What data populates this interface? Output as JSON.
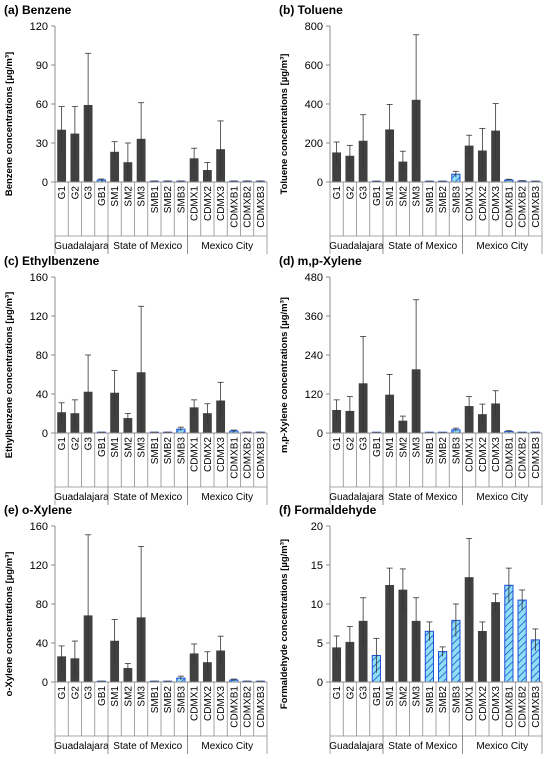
{
  "chart_data": [
    {
      "type": "bar",
      "title": "(a) Benzene",
      "ylabel": "Benzene concentrations [µg/m³]",
      "ylim": [
        0,
        120
      ],
      "yticks": [
        "0",
        "30",
        "60",
        "90",
        "120"
      ],
      "categories": [
        "G1",
        "G2",
        "G3",
        "GB1",
        "SM1",
        "SM2",
        "SM3",
        "SMB1",
        "SMB2",
        "SMB3",
        "CDMX1",
        "CDMX2",
        "CDMX3",
        "CDMXB1",
        "CDMXB2",
        "CDMXB3"
      ],
      "groups": [
        "Guadalajara",
        "State of Mexico",
        "Mexico City"
      ],
      "values": [
        40,
        37,
        59,
        1.5,
        23,
        15,
        33,
        0.5,
        0.5,
        0.5,
        18,
        9,
        25,
        0.5,
        0.5,
        0.5
      ],
      "errors": [
        18,
        21,
        40,
        0.8,
        8,
        15,
        28,
        0.3,
        0.3,
        0.3,
        8,
        6,
        22,
        0.3,
        0.3,
        0.3
      ]
    },
    {
      "type": "bar",
      "title": "(b) Toluene",
      "ylabel": "Toluene concentrations [µg/m³]",
      "ylim": [
        0,
        800
      ],
      "yticks": [
        "0",
        "200",
        "400",
        "600",
        "800"
      ],
      "categories": [
        "G1",
        "G2",
        "G3",
        "GB1",
        "SM1",
        "SM2",
        "SM3",
        "SMB1",
        "SMB2",
        "SMB3",
        "CDMX1",
        "CDMX2",
        "CDMX3",
        "CDMXB1",
        "CDMXB2",
        "CDMXB3"
      ],
      "groups": [
        "Guadalajara",
        "State of Mexico",
        "Mexico City"
      ],
      "values": [
        150,
        133,
        210,
        3,
        268,
        103,
        420,
        3,
        3,
        40,
        185,
        160,
        262,
        10,
        5,
        3
      ],
      "errors": [
        55,
        55,
        135,
        1,
        130,
        55,
        335,
        1,
        1,
        15,
        55,
        115,
        140,
        4,
        2,
        1
      ]
    },
    {
      "type": "bar",
      "title": "(c) Ethylbenzene",
      "ylabel": "Ethylbenzene concentrations [µg/m³]",
      "ylim": [
        0,
        160
      ],
      "yticks": [
        "0",
        "40",
        "80",
        "120",
        "160"
      ],
      "categories": [
        "G1",
        "G2",
        "G3",
        "GB1",
        "SM1",
        "SM2",
        "SM3",
        "SMB1",
        "SMB2",
        "SMB3",
        "CDMX1",
        "CDMX2",
        "CDMX3",
        "CDMXB1",
        "CDMXB2",
        "CDMXB3"
      ],
      "groups": [
        "Guadalajara",
        "State of Mexico",
        "Mexico City"
      ],
      "values": [
        21,
        20,
        42,
        0.5,
        41,
        15,
        62,
        0.5,
        0.5,
        4,
        26,
        20,
        33,
        2,
        0.5,
        0.5
      ],
      "errors": [
        10,
        14,
        38,
        0.3,
        23,
        5,
        68,
        0.3,
        0.3,
        2,
        8,
        10,
        19,
        1,
        0.3,
        0.3
      ]
    },
    {
      "type": "bar",
      "title": "(d) m,p-Xylene",
      "ylabel": "m,p-Xylene concentrations [µg/m³]",
      "ylim": [
        0,
        480
      ],
      "yticks": [
        "0",
        "120",
        "240",
        "360",
        "480"
      ],
      "categories": [
        "G1",
        "G2",
        "G3",
        "GB1",
        "SM1",
        "SM2",
        "SM3",
        "SMB1",
        "SMB2",
        "SMB3",
        "CDMX1",
        "CDMX2",
        "CDMX3",
        "CDMXB1",
        "CDMXB2",
        "CDMXB3"
      ],
      "groups": [
        "Guadalajara",
        "State of Mexico",
        "Mexico City"
      ],
      "values": [
        70,
        67,
        152,
        1,
        117,
        37,
        195,
        1,
        1,
        10,
        82,
        57,
        90,
        5,
        1,
        1
      ],
      "errors": [
        32,
        45,
        145,
        0.5,
        63,
        15,
        215,
        0.5,
        0.5,
        5,
        30,
        32,
        40,
        2,
        0.5,
        0.5
      ]
    },
    {
      "type": "bar",
      "title": "(e) o-Xylene",
      "ylabel": "o-Xylene concentrations [µg/m³]",
      "ylim": [
        0,
        160
      ],
      "yticks": [
        "0",
        "40",
        "80",
        "120",
        "160"
      ],
      "categories": [
        "G1",
        "G2",
        "G3",
        "GB1",
        "SM1",
        "SM2",
        "SM3",
        "SMB1",
        "SMB2",
        "SMB3",
        "CDMX1",
        "CDMX2",
        "CDMX3",
        "CDMXB1",
        "CDMXB2",
        "CDMXB3"
      ],
      "groups": [
        "Guadalajara",
        "State of Mexico",
        "Mexico City"
      ],
      "values": [
        26,
        24,
        68,
        0.5,
        42,
        14,
        66,
        0.5,
        0.5,
        4,
        29,
        20,
        32,
        2,
        0.5,
        0.5
      ],
      "errors": [
        11,
        18,
        83,
        0.3,
        22,
        5,
        73,
        0.3,
        0.3,
        2,
        10,
        11,
        15,
        1,
        0.3,
        0.3
      ]
    },
    {
      "type": "bar",
      "title": "(f) Formaldehyde",
      "ylabel": "Formaldehyde concentrations [µg/m³]",
      "ylim": [
        0,
        20
      ],
      "yticks": [
        "0",
        "5",
        "10",
        "15",
        "20"
      ],
      "categories": [
        "G1",
        "G2",
        "G3",
        "GB1",
        "SM1",
        "SM2",
        "SM3",
        "SMB1",
        "SMB2",
        "SMB3",
        "CDMX1",
        "CDMX2",
        "CDMX3",
        "CDMXB1",
        "CDMXB2",
        "CDMXB3"
      ],
      "groups": [
        "Guadalajara",
        "State of Mexico",
        "Mexico City"
      ],
      "values": [
        4.4,
        5.1,
        7.8,
        3.4,
        12.4,
        11.8,
        7.8,
        6.5,
        3.9,
        7.9,
        13.4,
        6.5,
        10.2,
        12.4,
        10.5,
        5.4
      ],
      "errors": [
        1.5,
        2.0,
        3.0,
        2.2,
        2.2,
        2.7,
        3.0,
        1.2,
        0.6,
        2.1,
        5.0,
        1.2,
        1.1,
        2.2,
        1.3,
        1.4
      ]
    }
  ],
  "colors": {
    "site_bar": "#404040",
    "background_bar_fill": "#8fe0f2",
    "background_bar_stroke": "#1f4fd6",
    "background_bar_hatch": "#1f4fd6",
    "axis": "#8c8c8c"
  },
  "background_categories": [
    "GB1",
    "SMB1",
    "SMB2",
    "SMB3",
    "CDMXB1",
    "CDMXB2",
    "CDMXB3"
  ]
}
